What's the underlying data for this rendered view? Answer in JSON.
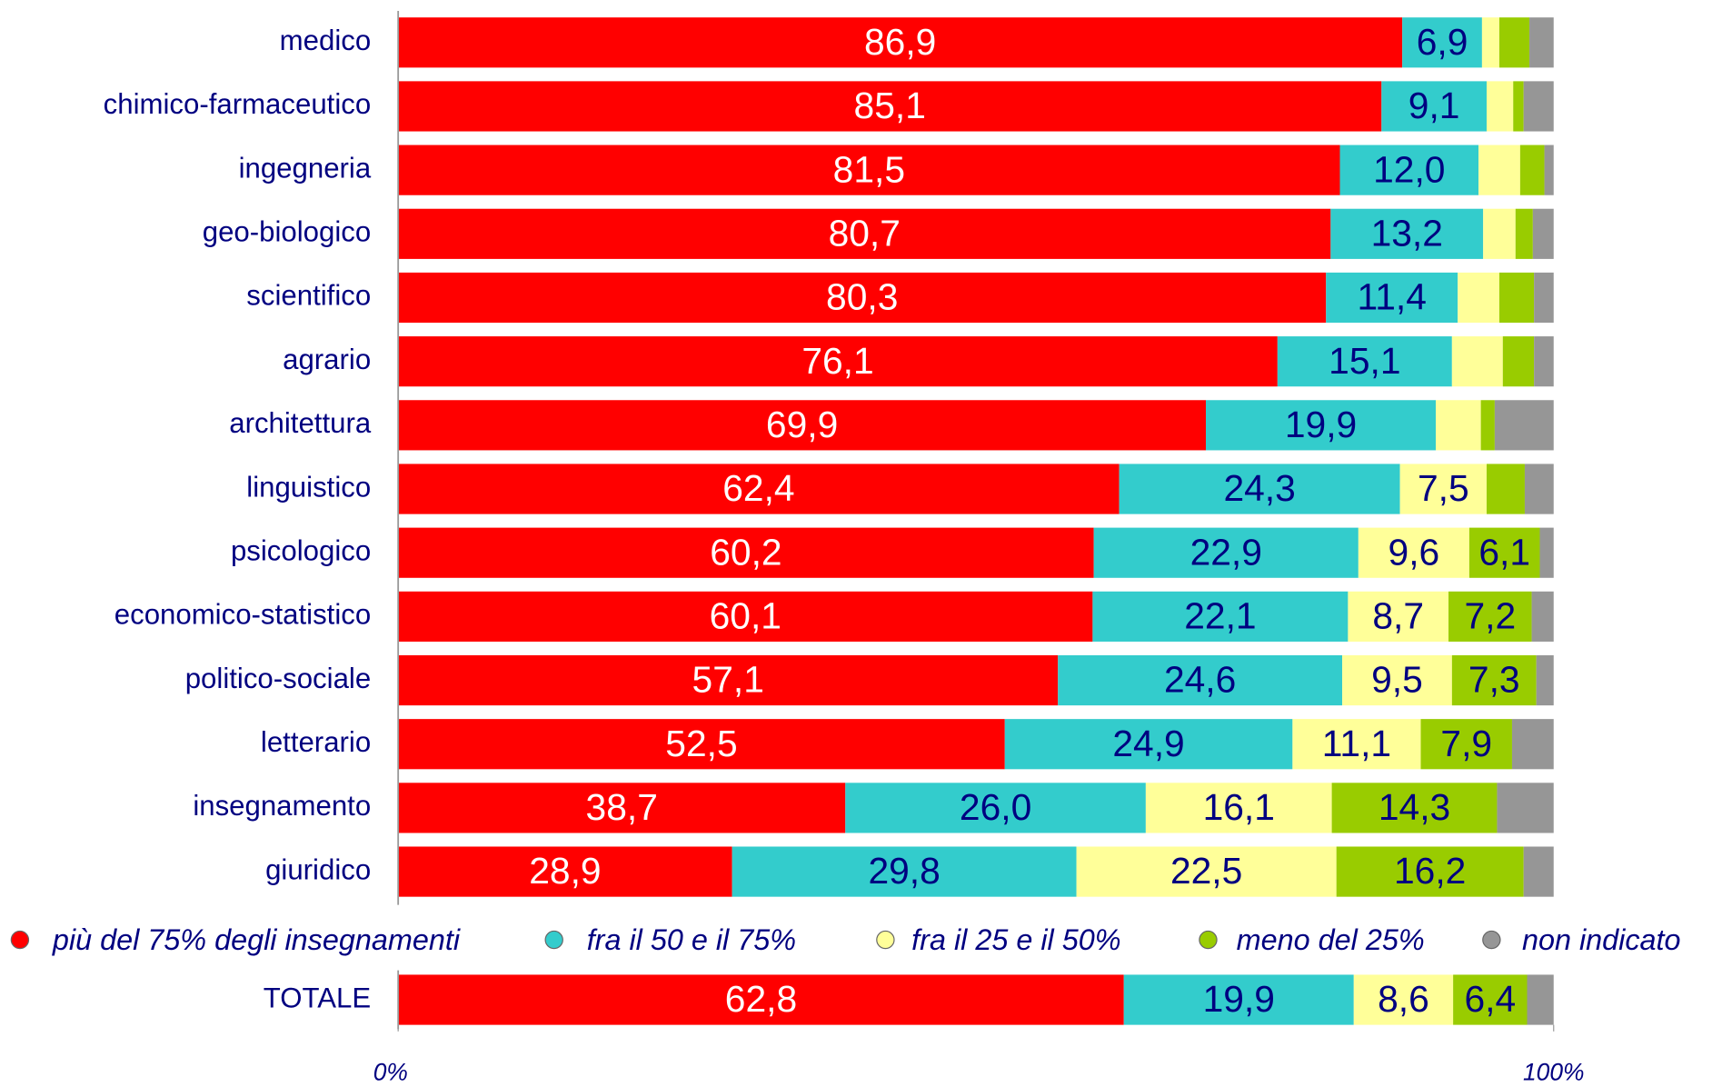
{
  "chart_data": {
    "type": "stacked-bar-horizontal",
    "categories": [
      "medico",
      "chimico-farmaceutico",
      "ingegneria",
      "geo-biologico",
      "scientifico",
      "agrario",
      "architettura",
      "linguistico",
      "psicologico",
      "economico-statistico",
      "politico-sociale",
      "letterario",
      "insegnamento",
      "giuridico",
      "TOTALE"
    ],
    "series": [
      {
        "name": "più del 75% degli insegnamenti",
        "color": "#ff0000",
        "values": [
          86.9,
          85.1,
          81.5,
          80.7,
          80.3,
          76.1,
          69.9,
          62.4,
          60.2,
          60.1,
          57.1,
          52.5,
          38.7,
          28.9,
          62.8
        ],
        "value_labels": [
          "86,9",
          "85,1",
          "81,5",
          "80,7",
          "80,3",
          "76,1",
          "69,9",
          "62,4",
          "60,2",
          "60,1",
          "57,1",
          "52,5",
          "38,7",
          "28,9",
          "62,8"
        ]
      },
      {
        "name": "fra il 50 e il 75%",
        "color": "#33cccc",
        "values": [
          6.9,
          9.1,
          12.0,
          13.2,
          11.4,
          15.1,
          19.9,
          24.3,
          22.9,
          22.1,
          24.6,
          24.9,
          26.0,
          29.8,
          19.9
        ],
        "value_labels": [
          "6,9",
          "9,1",
          "12,0",
          "13,2",
          "11,4",
          "15,1",
          "19,9",
          "24,3",
          "22,9",
          "22,1",
          "24,6",
          "24,9",
          "26,0",
          "29,8",
          "19,9"
        ]
      },
      {
        "name": "fra il 25 e il 50%",
        "color": "#ffff99",
        "values": [
          1.5,
          2.3,
          3.6,
          2.8,
          3.6,
          4.4,
          3.9,
          7.5,
          9.6,
          8.7,
          9.5,
          11.1,
          16.1,
          22.5,
          8.6
        ],
        "value_labels": [
          null,
          null,
          null,
          null,
          null,
          null,
          null,
          "7,5",
          "9,6",
          "8,7",
          "9,5",
          "11,1",
          "16,1",
          "22,5",
          "8,6"
        ]
      },
      {
        "name": "meno del 25%",
        "color": "#99cc00",
        "values": [
          2.6,
          0.9,
          2.1,
          1.5,
          3.0,
          2.7,
          1.2,
          3.3,
          6.1,
          7.2,
          7.3,
          7.9,
          14.3,
          16.2,
          6.4
        ],
        "value_labels": [
          null,
          null,
          null,
          null,
          null,
          null,
          null,
          null,
          "6,1",
          "7,2",
          "7,3",
          "7,9",
          "14,3",
          "16,2",
          "6,4"
        ]
      },
      {
        "name": "non indicato",
        "color": "#969696",
        "values": [
          2.1,
          2.6,
          0.8,
          1.8,
          1.7,
          1.7,
          5.1,
          2.5,
          1.2,
          1.9,
          1.5,
          3.6,
          4.9,
          2.6,
          2.3
        ],
        "value_labels": [
          null,
          null,
          null,
          null,
          null,
          null,
          null,
          null,
          null,
          null,
          null,
          null,
          null,
          null,
          null
        ]
      }
    ],
    "xlim": [
      0,
      100
    ],
    "xticks": [
      {
        "value": 0,
        "label": "0%"
      },
      {
        "value": 100,
        "label": "100%"
      }
    ]
  }
}
